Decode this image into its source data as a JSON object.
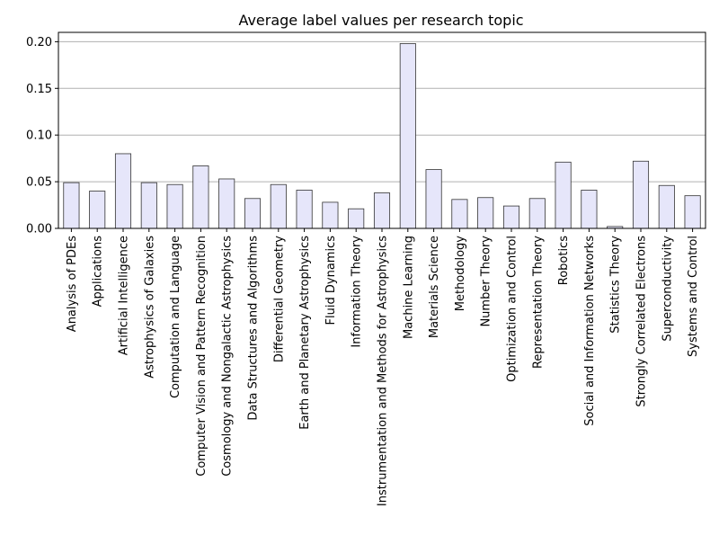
{
  "chart_data": {
    "type": "bar",
    "title": "Average label values per research topic",
    "xlabel": "",
    "ylabel": "",
    "ylim": [
      0,
      0.21
    ],
    "yticks": [
      "0.00",
      "0.05",
      "0.10",
      "0.15",
      "0.20"
    ],
    "ytick_values": [
      0,
      0.05,
      0.1,
      0.15,
      0.2
    ],
    "grid": "horizontal",
    "bar_color": "#e6e6fa",
    "bar_edge_color": "#333333",
    "grid_color": "#b0b0b0",
    "categories": [
      "Analysis of PDEs",
      "Applications",
      "Artificial Intelligence",
      "Astrophysics of Galaxies",
      "Computation and Language",
      "Computer Vision and Pattern Recognition",
      "Cosmology and Nongalactic Astrophysics",
      "Data Structures and Algorithms",
      "Differential Geometry",
      "Earth and Planetary Astrophysics",
      "Fluid Dynamics",
      "Information Theory",
      "Instrumentation and Methods for Astrophysics",
      "Machine Learning",
      "Materials Science",
      "Methodology",
      "Number Theory",
      "Optimization and Control",
      "Representation Theory",
      "Robotics",
      "Social and Information Networks",
      "Statistics Theory",
      "Strongly Correlated Electrons",
      "Superconductivity",
      "Systems and Control"
    ],
    "values": [
      0.049,
      0.04,
      0.08,
      0.049,
      0.047,
      0.067,
      0.053,
      0.032,
      0.047,
      0.041,
      0.028,
      0.021,
      0.038,
      0.198,
      0.063,
      0.031,
      0.033,
      0.024,
      0.032,
      0.071,
      0.041,
      0.002,
      0.072,
      0.046,
      0.035
    ]
  }
}
